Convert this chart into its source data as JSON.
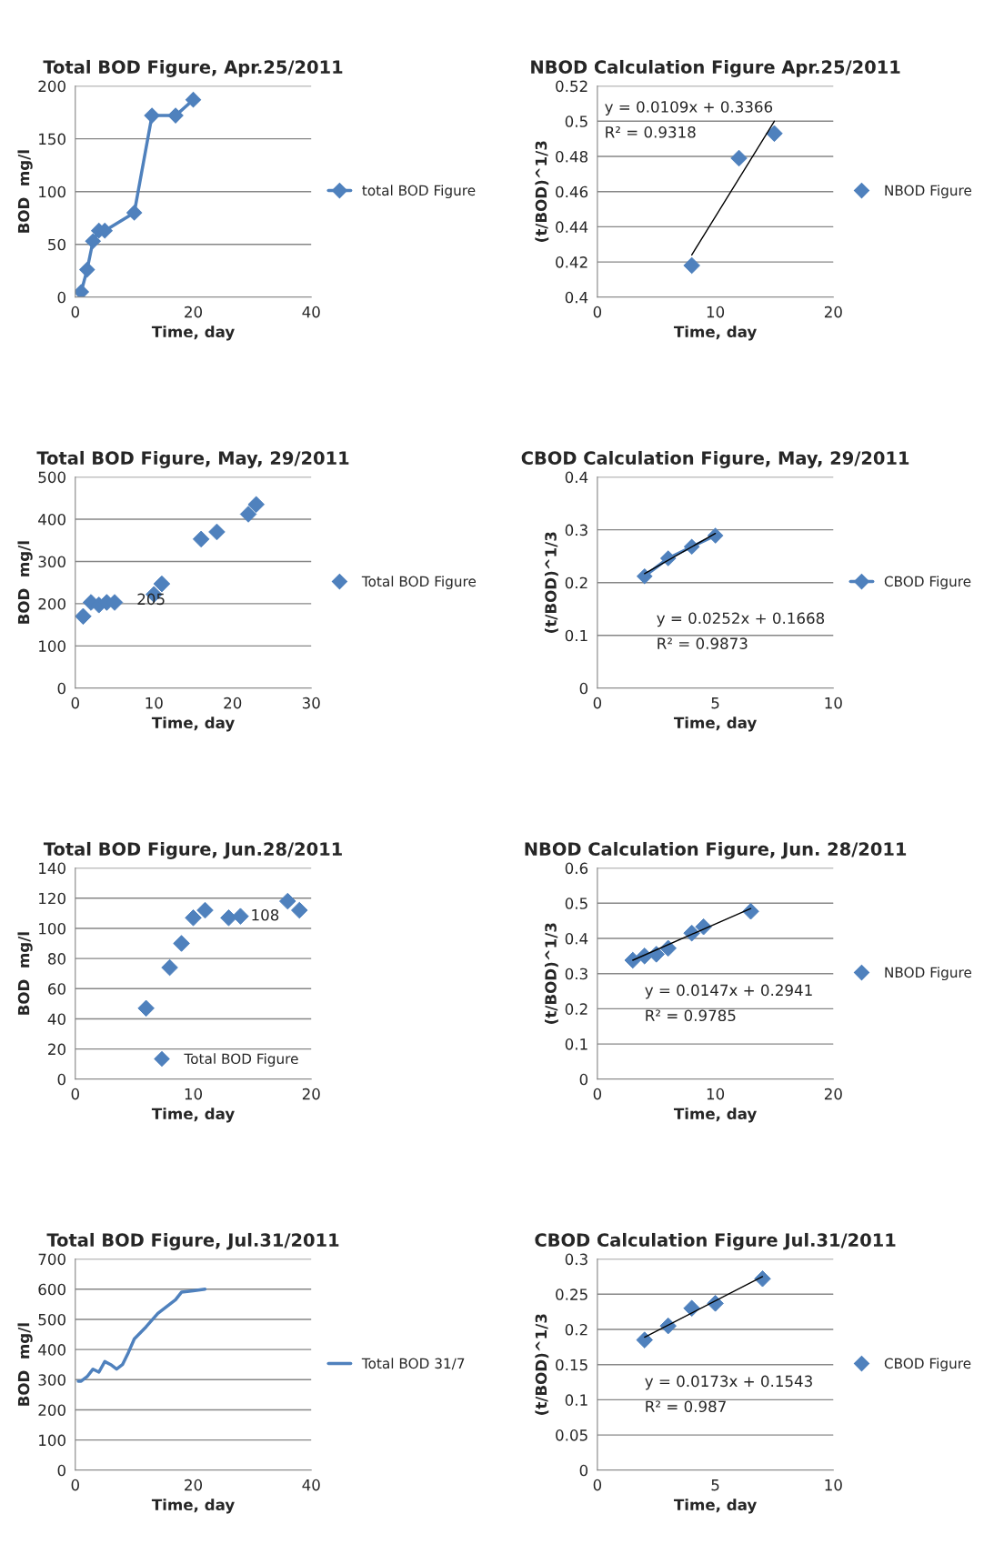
{
  "chart_data": [
    {
      "type": "line",
      "title": "Total BOD Figure, Apr.25/2011",
      "xlabel": "Time, day",
      "ylabel": "BOD  mg/l",
      "xlim": [
        0,
        40
      ],
      "xticks": [
        0,
        20,
        40
      ],
      "ylim": [
        0,
        200
      ],
      "yticks": [
        0,
        50,
        100,
        150,
        200
      ],
      "grid": "y",
      "legend": "right",
      "series": [
        {
          "name": "total BOD Figure",
          "color": "#4f81bd",
          "marker": "diamond",
          "x": [
            1,
            2,
            3,
            4,
            5,
            10,
            13,
            17,
            20
          ],
          "values": [
            5,
            26,
            53,
            63,
            63,
            80,
            172,
            172,
            187
          ]
        }
      ]
    },
    {
      "type": "scatter",
      "title": "NBOD Calculation Figure Apr.25/2011",
      "xlabel": "Time, day",
      "ylabel": "(t/BOD)^1/3",
      "xlim": [
        0,
        20
      ],
      "xticks": [
        0,
        10,
        20
      ],
      "ylim": [
        0.4,
        0.52
      ],
      "yticks": [
        0.4,
        0.42,
        0.44,
        0.46,
        0.48,
        0.5,
        0.52
      ],
      "grid": "y",
      "legend": "right",
      "annotations": [
        "y = 0.0109x + 0.3366",
        "R² = 0.9318"
      ],
      "series": [
        {
          "name": "NBOD Figure",
          "color": "#4f81bd",
          "marker": "diamond",
          "x": [
            8,
            12,
            15
          ],
          "values": [
            0.418,
            0.479,
            0.493
          ]
        },
        {
          "type": "line",
          "color": "#000000",
          "marker": "none",
          "x": [
            8,
            15
          ],
          "values": [
            0.424,
            0.5
          ]
        }
      ]
    },
    {
      "type": "scatter",
      "title": "Total BOD Figure, May, 29/2011",
      "xlabel": "Time, day",
      "ylabel": "BOD  mg/l",
      "xlim": [
        0,
        30
      ],
      "xticks": [
        0,
        10,
        20,
        30
      ],
      "ylim": [
        0,
        500
      ],
      "yticks": [
        0,
        100,
        200,
        300,
        400,
        500
      ],
      "grid": "y",
      "legend": "right",
      "annotations": [
        "205"
      ],
      "series": [
        {
          "name": "Total BOD Figure",
          "color": "#4f81bd",
          "marker": "diamond",
          "x": [
            1,
            2,
            3,
            4,
            5,
            10,
            11,
            16,
            18,
            22,
            23
          ],
          "values": [
            170,
            203,
            197,
            203,
            203,
            222,
            247,
            353,
            370,
            412,
            435
          ]
        }
      ]
    },
    {
      "type": "line",
      "title": "CBOD Calculation Figure, May, 29/2011",
      "xlabel": "Time, day",
      "ylabel": "(t/BOD)^1/3",
      "xlim": [
        0,
        10
      ],
      "xticks": [
        0,
        5,
        10
      ],
      "ylim": [
        0,
        0.4
      ],
      "yticks": [
        0,
        0.1,
        0.2,
        0.3,
        0.4
      ],
      "grid": "y",
      "legend": "right",
      "annotations": [
        "y = 0.0252x + 0.1668",
        "R² = 0.9873"
      ],
      "series": [
        {
          "name": "CBOD Figure",
          "color": "#4f81bd",
          "marker": "diamond",
          "x": [
            2,
            3,
            4,
            5
          ],
          "values": [
            0.212,
            0.246,
            0.268,
            0.289
          ]
        },
        {
          "type": "line",
          "color": "#000000",
          "marker": "none",
          "x": [
            2,
            5
          ],
          "values": [
            0.217,
            0.293
          ]
        }
      ]
    },
    {
      "type": "scatter",
      "title": "Total BOD Figure, Jun.28/2011",
      "xlabel": "Time, day",
      "ylabel": "BOD  mg/l",
      "xlim": [
        0,
        20
      ],
      "xticks": [
        0,
        10,
        20
      ],
      "ylim": [
        0,
        140
      ],
      "yticks": [
        0,
        20,
        40,
        60,
        80,
        100,
        120,
        140
      ],
      "grid": "y",
      "legend": "bottom right",
      "series": [
        {
          "name": "Total BOD Figure",
          "color": "#4f81bd",
          "marker": "diamond",
          "x": [
            6,
            8,
            9,
            10,
            11,
            13,
            14,
            18,
            19
          ],
          "values": [
            47,
            74,
            90,
            107,
            112,
            107,
            108,
            118,
            112
          ],
          "value_labels": [
            null,
            null,
            null,
            null,
            null,
            null,
            "108",
            null,
            null
          ]
        }
      ]
    },
    {
      "type": "scatter",
      "title": "NBOD Calculation Figure, Jun. 28/2011",
      "xlabel": "Time, day",
      "ylabel": "(t/BOD)^1/3",
      "xlim": [
        0,
        20
      ],
      "xticks": [
        0,
        10,
        20
      ],
      "ylim": [
        0,
        0.6
      ],
      "yticks": [
        0,
        0.1,
        0.2,
        0.3,
        0.4,
        0.5,
        0.6
      ],
      "grid": "y",
      "legend": "right",
      "annotations": [
        "y = 0.0147x + 0.2941",
        "R² = 0.9785"
      ],
      "series": [
        {
          "name": "NBOD Figure",
          "color": "#4f81bd",
          "marker": "diamond",
          "x": [
            3,
            4,
            5,
            6,
            8,
            9,
            13
          ],
          "values": [
            0.338,
            0.35,
            0.355,
            0.372,
            0.415,
            0.433,
            0.477
          ]
        },
        {
          "type": "line",
          "color": "#000000",
          "marker": "none",
          "x": [
            3,
            13
          ],
          "values": [
            0.338,
            0.485
          ]
        }
      ]
    },
    {
      "type": "line",
      "title": "Total BOD Figure, Jul.31/2011",
      "xlabel": "Time, day",
      "ylabel": "BOD  mg/l",
      "xlim": [
        0,
        40
      ],
      "xticks": [
        0,
        20,
        40
      ],
      "ylim": [
        0,
        700
      ],
      "yticks": [
        0,
        100,
        200,
        300,
        400,
        500,
        600,
        700
      ],
      "grid": "y",
      "legend": "right",
      "series": [
        {
          "name": "Total BOD 31/7",
          "color": "#4f81bd",
          "marker": "none",
          "x": [
            0.5,
            1,
            2,
            3,
            4,
            5,
            6,
            7,
            8,
            9,
            10,
            12,
            14,
            16,
            17,
            18,
            20,
            22
          ],
          "values": [
            295,
            295,
            310,
            335,
            325,
            360,
            350,
            335,
            350,
            390,
            435,
            475,
            520,
            550,
            565,
            590,
            595,
            600
          ]
        }
      ]
    },
    {
      "type": "scatter",
      "title": "CBOD Calculation Figure Jul.31/2011",
      "xlabel": "Time, day",
      "ylabel": "(t/BOD)^1/3",
      "xlim": [
        0,
        10
      ],
      "xticks": [
        0,
        5,
        10
      ],
      "ylim": [
        0,
        0.3
      ],
      "yticks": [
        0,
        0.05,
        0.1,
        0.15,
        0.2,
        0.25,
        0.3
      ],
      "grid": "y",
      "legend": "right",
      "annotations": [
        "y = 0.0173x + 0.1543",
        "R² = 0.987"
      ],
      "series": [
        {
          "name": "CBOD Figure",
          "color": "#4f81bd",
          "marker": "diamond",
          "x": [
            2,
            3,
            4,
            5,
            7
          ],
          "values": [
            0.185,
            0.205,
            0.23,
            0.237,
            0.272
          ]
        },
        {
          "type": "line",
          "color": "#000000",
          "marker": "none",
          "x": [
            2,
            7
          ],
          "values": [
            0.189,
            0.275
          ]
        }
      ]
    }
  ]
}
